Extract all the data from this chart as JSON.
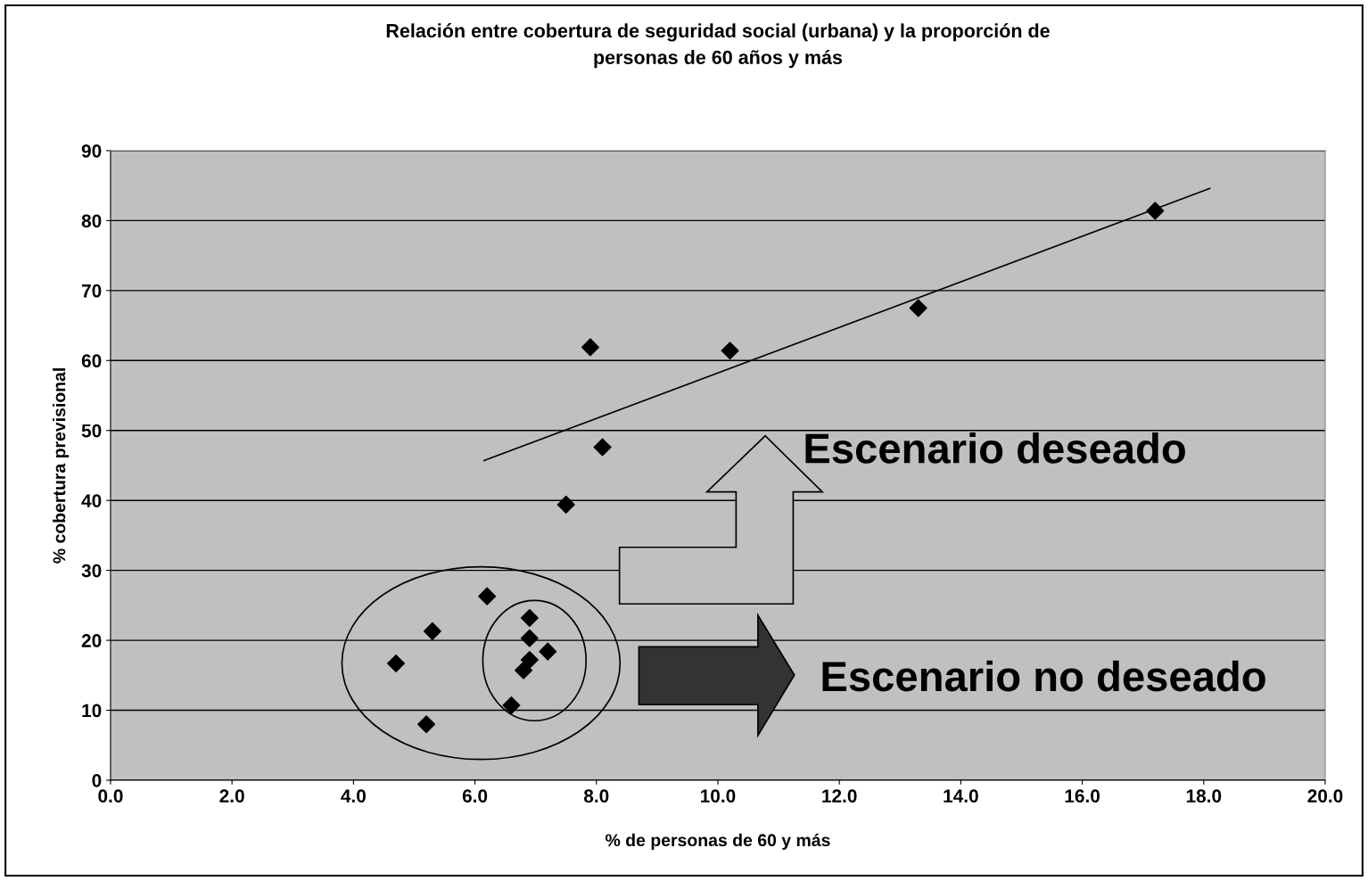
{
  "chart_data": {
    "type": "scatter",
    "title": "Relación entre cobertura de seguridad social (urbana) y la proporción de\npersonas de 60 años y más",
    "xlabel": "% de personas de 60 y más",
    "ylabel": "% cobertura previsional",
    "grid": "y",
    "xlim": [
      0,
      20
    ],
    "ylim": [
      0,
      90
    ],
    "xticks": [
      {
        "value": 0,
        "label": "0.0"
      },
      {
        "value": 2,
        "label": "2.0"
      },
      {
        "value": 4,
        "label": "4.0"
      },
      {
        "value": 6,
        "label": "6.0"
      },
      {
        "value": 8,
        "label": "8.0"
      },
      {
        "value": 10,
        "label": "10.0"
      },
      {
        "value": 12,
        "label": "12.0"
      },
      {
        "value": 14,
        "label": "14.0"
      },
      {
        "value": 16,
        "label": "16.0"
      },
      {
        "value": 18,
        "label": "18.0"
      },
      {
        "value": 20,
        "label": "20.0"
      }
    ],
    "yticks": [
      0,
      10,
      20,
      30,
      40,
      50,
      60,
      70,
      80,
      90
    ],
    "series": [
      {
        "marker": "diamond",
        "color": "#000000",
        "x": [
          4.7,
          5.2,
          5.3,
          6.2,
          6.6,
          6.8,
          6.9,
          6.9,
          6.9,
          7.2,
          7.5,
          7.9,
          8.1,
          10.2,
          13.3,
          17.2
        ],
        "values": [
          16.7,
          8.0,
          21.3,
          26.3,
          10.7,
          15.7,
          23.2,
          20.3,
          17.2,
          18.4,
          39.4,
          61.9,
          47.6,
          61.4,
          67.5,
          81.4
        ]
      },
      {
        "type": "line",
        "marker": "none",
        "color": "#000000",
        "x": [
          6.15,
          18.1
        ],
        "values": [
          45.7,
          84.6
        ]
      }
    ],
    "annotations": [
      "Escenario deseado",
      "Escenario no deseado"
    ]
  }
}
